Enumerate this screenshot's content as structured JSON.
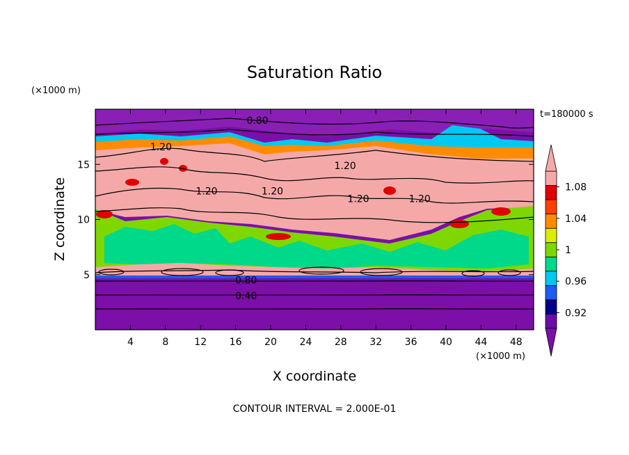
{
  "chart_data": {
    "type": "heatmap",
    "title": "Saturation Ratio",
    "xlabel": "X coordinate",
    "ylabel": "Z coordinate",
    "x_unit": "(×1000 m)",
    "y_unit": "(×1000 m)",
    "time_label": "t=180000 s",
    "footer": "CONTOUR INTERVAL = 2.000E-01",
    "xlim": [
      0,
      50
    ],
    "ylim": [
      0,
      20
    ],
    "x_ticks": [
      "4",
      "8",
      "12",
      "16",
      "20",
      "24",
      "28",
      "32",
      "36",
      "40",
      "44",
      "48"
    ],
    "y_ticks": [
      "5",
      "10",
      "15"
    ],
    "colorbar": {
      "levels": [
        0.9,
        0.92,
        0.94,
        0.96,
        0.98,
        1.0,
        1.02,
        1.04,
        1.06,
        1.08,
        1.1
      ],
      "tick_labels": [
        "0.92",
        "0.96",
        "1",
        "1.04",
        "1.08"
      ],
      "colors": [
        "#6a0dad",
        "#00008b",
        "#1c5cf2",
        "#00c8f0",
        "#00d88a",
        "#7ed800",
        "#d8f000",
        "#ff8c00",
        "#ff4000",
        "#e00000",
        "#f4a9a8"
      ],
      "under_color": "#7b0fa8",
      "over_color": "#f4a9a8"
    },
    "contour_labels": [
      {
        "text": "0.80",
        "x": 18.5,
        "z": 19.0
      },
      {
        "text": "1.20",
        "x": 7.5,
        "z": 16.6
      },
      {
        "text": "1.20",
        "x": 28.5,
        "z": 14.9
      },
      {
        "text": "1.20",
        "x": 12.7,
        "z": 12.6
      },
      {
        "text": "1.20",
        "x": 20.2,
        "z": 12.6
      },
      {
        "text": "1.20",
        "x": 30.0,
        "z": 11.9
      },
      {
        "text": "1.20",
        "x": 37.0,
        "z": 11.9
      },
      {
        "text": "0.80",
        "x": 17.2,
        "z": 4.5
      },
      {
        "text": "0.40",
        "x": 17.2,
        "z": 3.1
      }
    ]
  }
}
